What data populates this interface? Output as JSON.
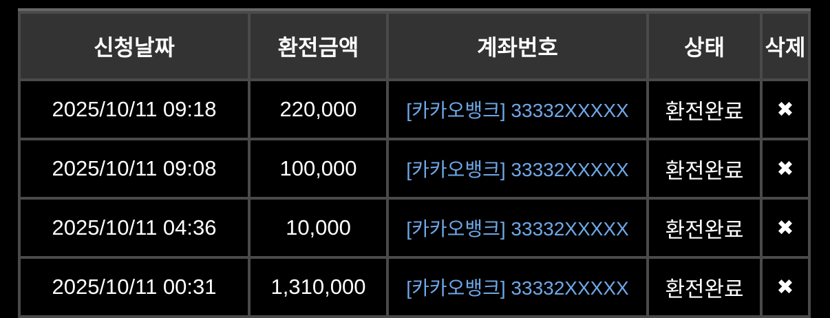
{
  "headers": {
    "date": "신청날짜",
    "amount": "환전금액",
    "account": "계좌번호",
    "status": "상태",
    "delete": "삭제"
  },
  "rows": [
    {
      "date": "2025/10/11 09:18",
      "amount": "220,000",
      "account": "[카카오뱅크] 33332XXXXX",
      "status": "환전완료",
      "delete_icon": "✖"
    },
    {
      "date": "2025/10/11 09:08",
      "amount": "100,000",
      "account": "[카카오뱅크] 33332XXXXX",
      "status": "환전완료",
      "delete_icon": "✖"
    },
    {
      "date": "2025/10/11 04:36",
      "amount": "10,000",
      "account": "[카카오뱅크] 33332XXXXX",
      "status": "환전완료",
      "delete_icon": "✖"
    },
    {
      "date": "2025/10/11 00:31",
      "amount": "1,310,000",
      "account": "[카카오뱅크] 33332XXXXX",
      "status": "환전완료",
      "delete_icon": "✖"
    }
  ],
  "colors": {
    "header_bg": "#333333",
    "link": "#6fa8e8",
    "border": "#4a4a4a"
  }
}
